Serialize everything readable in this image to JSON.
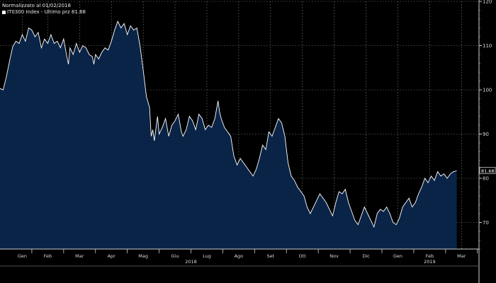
{
  "chart_data": {
    "type": "area",
    "legend_title": "Normalizzato al 01/02/2018",
    "series_label": "IT0300 Index - Ultimo prz 81.68",
    "last_value_label": "81.68",
    "ylim": [
      64,
      120
    ],
    "yticks": [
      70,
      80,
      90,
      100,
      110,
      120
    ],
    "ytick_labels": [
      "70",
      "80",
      "90",
      "100",
      "110",
      "120"
    ],
    "x_months": [
      {
        "label": "Gen",
        "t": 0.7
      },
      {
        "label": "Feb",
        "t": 1.5
      },
      {
        "label": "Mar",
        "t": 2.5
      },
      {
        "label": "Apr",
        "t": 3.5
      },
      {
        "label": "Mag",
        "t": 4.5
      },
      {
        "label": "Giu",
        "t": 5.5
      },
      {
        "label": "Lug",
        "t": 6.5
      },
      {
        "label": "Ago",
        "t": 7.5
      },
      {
        "label": "Set",
        "t": 8.5
      },
      {
        "label": "Ott",
        "t": 9.5
      },
      {
        "label": "Nov",
        "t": 10.5
      },
      {
        "label": "Dic",
        "t": 11.5
      },
      {
        "label": "Gen",
        "t": 12.5
      },
      {
        "label": "Feb",
        "t": 13.5
      },
      {
        "label": "Mar",
        "t": 14.5
      }
    ],
    "x_years": [
      {
        "label": "2018",
        "t": 6.0
      },
      {
        "label": "2019",
        "t": 13.5
      }
    ],
    "xlim": [
      0,
      15.05
    ],
    "grid": true,
    "fill_color": "#0a2447",
    "line_color": "#ffffff",
    "points": [
      [
        0.0,
        100.3
      ],
      [
        0.1,
        100.0
      ],
      [
        0.2,
        103.0
      ],
      [
        0.3,
        106.5
      ],
      [
        0.4,
        109.8
      ],
      [
        0.5,
        111.0
      ],
      [
        0.6,
        110.5
      ],
      [
        0.7,
        112.5
      ],
      [
        0.8,
        111.0
      ],
      [
        0.9,
        114.0
      ],
      [
        1.0,
        113.5
      ],
      [
        1.1,
        112.0
      ],
      [
        1.2,
        113.0
      ],
      [
        1.3,
        109.5
      ],
      [
        1.4,
        111.5
      ],
      [
        1.5,
        110.5
      ],
      [
        1.6,
        112.5
      ],
      [
        1.7,
        110.5
      ],
      [
        1.8,
        111.0
      ],
      [
        1.9,
        109.5
      ],
      [
        2.0,
        111.5
      ],
      [
        2.1,
        107.5
      ],
      [
        2.15,
        105.8
      ],
      [
        2.2,
        109.5
      ],
      [
        2.3,
        108.0
      ],
      [
        2.4,
        110.5
      ],
      [
        2.5,
        108.5
      ],
      [
        2.6,
        110.0
      ],
      [
        2.7,
        109.5
      ],
      [
        2.8,
        108.0
      ],
      [
        2.9,
        107.5
      ],
      [
        2.95,
        105.8
      ],
      [
        3.0,
        108.0
      ],
      [
        3.1,
        107.0
      ],
      [
        3.2,
        108.5
      ],
      [
        3.3,
        109.5
      ],
      [
        3.4,
        109.0
      ],
      [
        3.5,
        111.0
      ],
      [
        3.6,
        113.5
      ],
      [
        3.7,
        115.5
      ],
      [
        3.8,
        114.0
      ],
      [
        3.9,
        115.0
      ],
      [
        4.0,
        112.5
      ],
      [
        4.1,
        114.5
      ],
      [
        4.2,
        113.5
      ],
      [
        4.3,
        114.0
      ],
      [
        4.4,
        110.0
      ],
      [
        4.5,
        104.5
      ],
      [
        4.6,
        98.5
      ],
      [
        4.7,
        96.0
      ],
      [
        4.75,
        89.5
      ],
      [
        4.8,
        91.0
      ],
      [
        4.85,
        88.5
      ],
      [
        4.95,
        94.0
      ],
      [
        5.0,
        90.0
      ],
      [
        5.1,
        91.5
      ],
      [
        5.2,
        93.5
      ],
      [
        5.3,
        89.5
      ],
      [
        5.4,
        92.0
      ],
      [
        5.5,
        93.0
      ],
      [
        5.6,
        94.5
      ],
      [
        5.7,
        90.5
      ],
      [
        5.75,
        89.5
      ],
      [
        5.85,
        91.0
      ],
      [
        5.95,
        94.0
      ],
      [
        6.05,
        93.0
      ],
      [
        6.15,
        91.0
      ],
      [
        6.25,
        94.5
      ],
      [
        6.35,
        93.5
      ],
      [
        6.45,
        91.0
      ],
      [
        6.55,
        92.0
      ],
      [
        6.65,
        91.5
      ],
      [
        6.75,
        93.5
      ],
      [
        6.85,
        97.5
      ],
      [
        6.9,
        95.0
      ],
      [
        6.95,
        93.5
      ],
      [
        7.05,
        91.5
      ],
      [
        7.15,
        90.5
      ],
      [
        7.25,
        89.5
      ],
      [
        7.35,
        85.0
      ],
      [
        7.45,
        83.0
      ],
      [
        7.55,
        84.5
      ],
      [
        7.65,
        83.5
      ],
      [
        7.75,
        82.5
      ],
      [
        7.85,
        81.5
      ],
      [
        7.95,
        80.5
      ],
      [
        8.05,
        82.0
      ],
      [
        8.15,
        84.5
      ],
      [
        8.25,
        87.5
      ],
      [
        8.35,
        86.5
      ],
      [
        8.45,
        90.5
      ],
      [
        8.55,
        89.5
      ],
      [
        8.65,
        91.5
      ],
      [
        8.75,
        93.5
      ],
      [
        8.85,
        92.5
      ],
      [
        8.95,
        89.5
      ],
      [
        9.05,
        83.5
      ],
      [
        9.15,
        80.5
      ],
      [
        9.25,
        79.5
      ],
      [
        9.35,
        78.0
      ],
      [
        9.45,
        77.0
      ],
      [
        9.55,
        76.0
      ],
      [
        9.65,
        73.5
      ],
      [
        9.75,
        72.0
      ],
      [
        9.85,
        73.5
      ],
      [
        9.95,
        75.0
      ],
      [
        10.05,
        76.5
      ],
      [
        10.15,
        75.5
      ],
      [
        10.25,
        74.5
      ],
      [
        10.35,
        73.0
      ],
      [
        10.45,
        71.5
      ],
      [
        10.55,
        74.5
      ],
      [
        10.65,
        77.0
      ],
      [
        10.75,
        76.5
      ],
      [
        10.85,
        77.5
      ],
      [
        10.95,
        74.5
      ],
      [
        11.05,
        72.5
      ],
      [
        11.15,
        70.5
      ],
      [
        11.25,
        69.5
      ],
      [
        11.35,
        71.5
      ],
      [
        11.45,
        73.5
      ],
      [
        11.55,
        72.0
      ],
      [
        11.65,
        70.5
      ],
      [
        11.75,
        69.0
      ],
      [
        11.85,
        72.0
      ],
      [
        11.95,
        73.0
      ],
      [
        12.05,
        72.5
      ],
      [
        12.15,
        73.5
      ],
      [
        12.25,
        72.0
      ],
      [
        12.35,
        70.0
      ],
      [
        12.45,
        69.5
      ],
      [
        12.55,
        71.0
      ],
      [
        12.65,
        73.5
      ],
      [
        12.75,
        74.5
      ],
      [
        12.85,
        75.5
      ],
      [
        12.95,
        73.5
      ],
      [
        13.05,
        74.5
      ],
      [
        13.15,
        76.5
      ],
      [
        13.25,
        78.0
      ],
      [
        13.35,
        80.0
      ],
      [
        13.45,
        79.0
      ],
      [
        13.55,
        80.5
      ],
      [
        13.65,
        79.5
      ],
      [
        13.75,
        81.5
      ],
      [
        13.85,
        80.5
      ],
      [
        13.95,
        81.0
      ],
      [
        14.05,
        80.0
      ],
      [
        14.15,
        81.0
      ],
      [
        14.25,
        81.5
      ],
      [
        14.35,
        81.68
      ]
    ]
  }
}
